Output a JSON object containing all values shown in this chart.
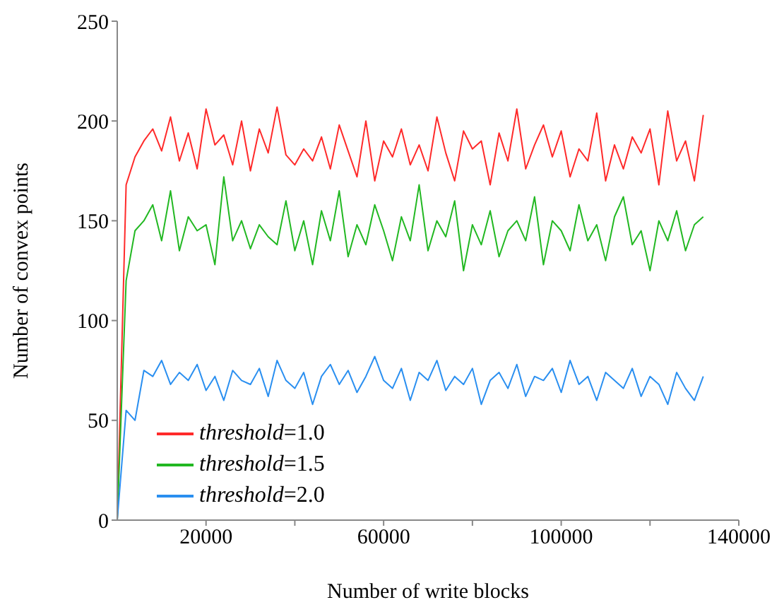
{
  "chart_data": {
    "type": "line",
    "xlabel": "Number of write blocks",
    "ylabel": "Number of convex points",
    "x": [
      0,
      2000,
      4000,
      6000,
      8000,
      10000,
      12000,
      14000,
      16000,
      18000,
      20000,
      22000,
      24000,
      26000,
      28000,
      30000,
      32000,
      34000,
      36000,
      38000,
      40000,
      42000,
      44000,
      46000,
      48000,
      50000,
      52000,
      54000,
      56000,
      58000,
      60000,
      62000,
      64000,
      66000,
      68000,
      70000,
      72000,
      74000,
      76000,
      78000,
      80000,
      82000,
      84000,
      86000,
      88000,
      90000,
      92000,
      94000,
      96000,
      98000,
      100000,
      102000,
      104000,
      106000,
      108000,
      110000,
      112000,
      114000,
      116000,
      118000,
      120000,
      122000,
      124000,
      126000,
      128000,
      130000,
      132000
    ],
    "series": [
      {
        "name": "threshold=1.0",
        "color": "#ff2a2a",
        "values": [
          0,
          168,
          182,
          190,
          196,
          185,
          202,
          180,
          194,
          176,
          206,
          188,
          193,
          178,
          200,
          175,
          196,
          184,
          207,
          183,
          178,
          186,
          180,
          192,
          176,
          198,
          185,
          172,
          200,
          170,
          190,
          182,
          196,
          178,
          188,
          175,
          202,
          184,
          170,
          195,
          186,
          190,
          168,
          194,
          180,
          206,
          176,
          188,
          198,
          182,
          195,
          172,
          186,
          180,
          204,
          170,
          188,
          176,
          192,
          184,
          196,
          168,
          205,
          180,
          190,
          170,
          203
        ]
      },
      {
        "name": "threshold=1.5",
        "color": "#22b822",
        "values": [
          0,
          120,
          145,
          150,
          158,
          140,
          165,
          135,
          152,
          145,
          148,
          128,
          172,
          140,
          150,
          136,
          148,
          142,
          138,
          160,
          135,
          150,
          128,
          155,
          140,
          165,
          132,
          148,
          138,
          158,
          145,
          130,
          152,
          140,
          168,
          135,
          150,
          142,
          160,
          125,
          148,
          138,
          155,
          132,
          145,
          150,
          140,
          162,
          128,
          150,
          145,
          135,
          158,
          140,
          148,
          130,
          152,
          162,
          138,
          145,
          125,
          150,
          140,
          155,
          135,
          148,
          152
        ]
      },
      {
        "name": "threshold=2.0",
        "color": "#2a8ff0",
        "values": [
          0,
          55,
          50,
          75,
          72,
          80,
          68,
          74,
          70,
          78,
          65,
          72,
          60,
          75,
          70,
          68,
          76,
          62,
          80,
          70,
          66,
          74,
          58,
          72,
          78,
          68,
          75,
          64,
          72,
          82,
          70,
          66,
          76,
          60,
          74,
          70,
          80,
          65,
          72,
          68,
          76,
          58,
          70,
          74,
          66,
          78,
          62,
          72,
          70,
          76,
          64,
          80,
          68,
          72,
          60,
          74,
          70,
          66,
          76,
          62,
          72,
          68,
          58,
          74,
          66,
          60,
          72
        ]
      }
    ],
    "xlim": [
      0,
      140000
    ],
    "xticks": [
      20000,
      {
        "value": 40000,
        "label": null
      },
      60000,
      {
        "value": 80000,
        "label": null
      },
      100000,
      {
        "value": 120000,
        "label": null
      },
      140000
    ],
    "ylim": [
      0,
      250
    ],
    "yticks": [
      0,
      50,
      100,
      150,
      200,
      250
    ],
    "legend": "bottom left",
    "marker": "none",
    "line_style": "solid"
  }
}
